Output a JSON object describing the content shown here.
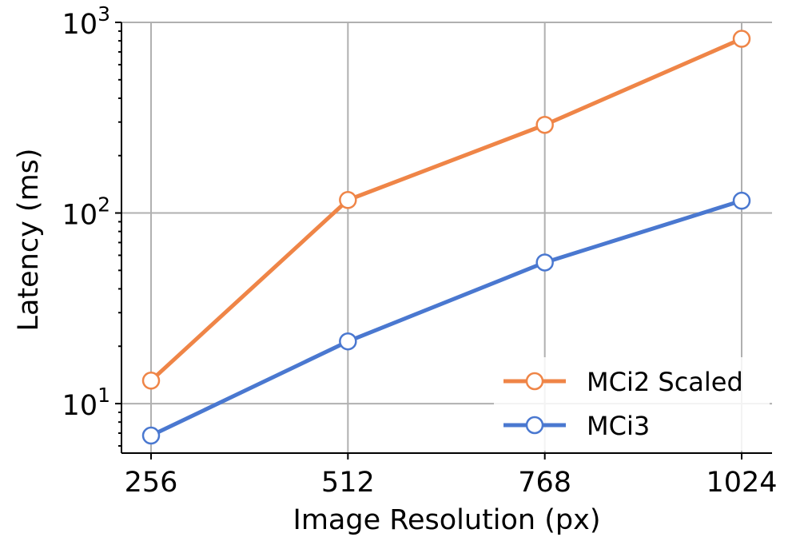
{
  "chart_data": {
    "type": "line",
    "xlabel": "Image Resolution (px)",
    "ylabel": "Latency (ms)",
    "x": [
      256,
      512,
      768,
      1024
    ],
    "x_tick_labels": [
      "256",
      "512",
      "768",
      "1024"
    ],
    "y_scale": "log",
    "ylim": [
      5.5,
      1000
    ],
    "y_ticks": [
      {
        "value": 10,
        "base": "10",
        "exp": "1"
      },
      {
        "value": 100,
        "base": "10",
        "exp": "2"
      },
      {
        "value": 1000,
        "base": "10",
        "exp": "3"
      }
    ],
    "grid": true,
    "legend_position": "lower-right",
    "series": [
      {
        "name": "MCi2 Scaled",
        "color": "#ef8547",
        "values": [
          13.2,
          117,
          290,
          820
        ]
      },
      {
        "name": "MCi3",
        "color": "#4a78d0",
        "values": [
          6.8,
          21.2,
          55,
          116
        ]
      }
    ]
  }
}
